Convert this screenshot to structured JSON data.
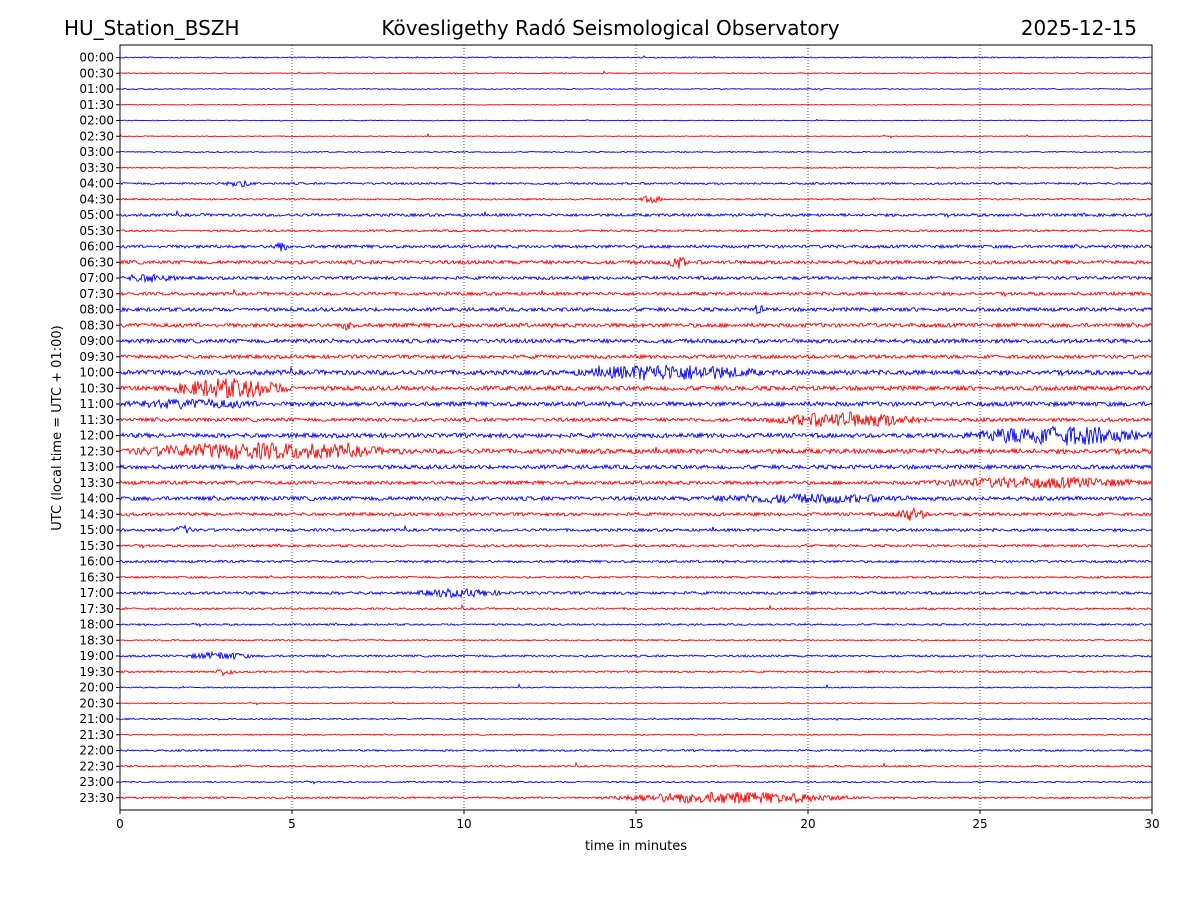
{
  "header": {
    "station": "HU_Station_BSZH",
    "observatory": "Kövesligethy Radó Seismological Observatory",
    "date": "2025-12-15"
  },
  "chart_data": {
    "type": "line",
    "title": "Kövesligethy Radó Seismological Observatory",
    "xlabel": "time in minutes",
    "ylabel": "UTC (local time = UTC + 01:00)",
    "xlim": [
      0,
      30
    ],
    "x_ticks": [
      0,
      5,
      10,
      15,
      20,
      25,
      30
    ],
    "vertical_gridlines_dotted": true,
    "trace_colors": [
      "#0000ff",
      "#ff0000"
    ],
    "color_pattern": "alternating blue (on the hour) / red (half hour)",
    "row_labels": [
      "00:00",
      "00:30",
      "01:00",
      "01:30",
      "02:00",
      "02:30",
      "03:00",
      "03:30",
      "04:00",
      "04:30",
      "05:00",
      "05:30",
      "06:00",
      "06:30",
      "07:00",
      "07:30",
      "08:00",
      "08:30",
      "09:00",
      "09:30",
      "10:00",
      "10:30",
      "11:00",
      "11:30",
      "12:00",
      "12:30",
      "13:00",
      "13:30",
      "14:00",
      "14:30",
      "15:00",
      "15:30",
      "16:00",
      "16:30",
      "17:00",
      "17:30",
      "18:00",
      "18:30",
      "19:00",
      "19:30",
      "20:00",
      "20:30",
      "21:00",
      "21:30",
      "22:00",
      "22:30",
      "23:00",
      "23:30"
    ],
    "noise_levels": [
      0.6,
      0.5,
      0.5,
      0.4,
      0.4,
      0.4,
      0.6,
      0.6,
      1.0,
      0.8,
      1.4,
      1.0,
      1.5,
      1.8,
      1.6,
      1.6,
      1.8,
      2.0,
      2.0,
      1.8,
      2.4,
      2.2,
      2.2,
      1.8,
      2.2,
      2.4,
      2.0,
      1.8,
      2.0,
      1.6,
      1.4,
      1.2,
      1.2,
      1.0,
      1.4,
      1.0,
      0.9,
      0.8,
      1.0,
      0.9,
      0.6,
      0.5,
      0.7,
      0.6,
      0.9,
      0.9,
      0.7,
      0.9
    ],
    "events": [
      {
        "row": "04:00",
        "start": 2.9,
        "end": 4.0,
        "amp": 2.5
      },
      {
        "row": "04:30",
        "start": 15.1,
        "end": 15.8,
        "amp": 3
      },
      {
        "row": "06:00",
        "start": 4.4,
        "end": 4.9,
        "amp": 4
      },
      {
        "row": "06:30",
        "start": 15.9,
        "end": 16.5,
        "amp": 5
      },
      {
        "row": "07:00",
        "start": 0.1,
        "end": 1.7,
        "amp": 3
      },
      {
        "row": "08:00",
        "start": 18.3,
        "end": 18.8,
        "amp": 3
      },
      {
        "row": "08:30",
        "start": 6.4,
        "end": 6.9,
        "amp": 3
      },
      {
        "row": "10:00",
        "start": 13.2,
        "end": 18.7,
        "amp": 6
      },
      {
        "row": "10:30",
        "start": 1.4,
        "end": 5.0,
        "amp": 8
      },
      {
        "row": "11:00",
        "start": 0.1,
        "end": 4.2,
        "amp": 3
      },
      {
        "row": "11:30",
        "start": 18.8,
        "end": 23.5,
        "amp": 6
      },
      {
        "row": "12:00",
        "start": 24.5,
        "end": 30.0,
        "amp": 8
      },
      {
        "row": "12:30",
        "start": 0.1,
        "end": 8.2,
        "amp": 6
      },
      {
        "row": "13:30",
        "start": 23.3,
        "end": 30.0,
        "amp": 4
      },
      {
        "row": "14:00",
        "start": 16.8,
        "end": 23.0,
        "amp": 3
      },
      {
        "row": "14:30",
        "start": 22.4,
        "end": 23.5,
        "amp": 5
      },
      {
        "row": "15:00",
        "start": 1.6,
        "end": 2.1,
        "amp": 4
      },
      {
        "row": "17:00",
        "start": 8.5,
        "end": 11.2,
        "amp": 3
      },
      {
        "row": "19:00",
        "start": 1.9,
        "end": 3.9,
        "amp": 3
      },
      {
        "row": "19:30",
        "start": 2.7,
        "end": 3.4,
        "amp": 3
      },
      {
        "row": "23:30",
        "start": 14.0,
        "end": 21.5,
        "amp": 5
      }
    ]
  }
}
